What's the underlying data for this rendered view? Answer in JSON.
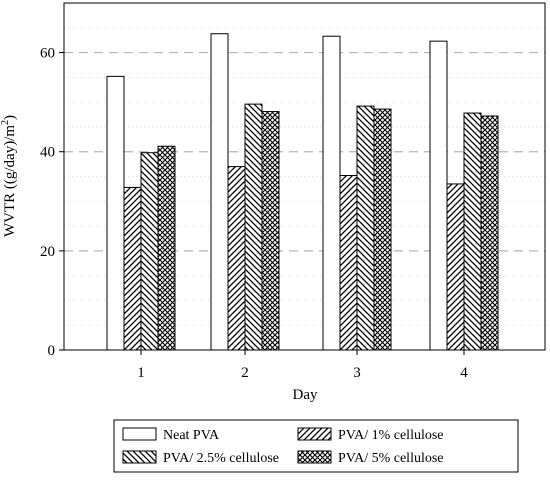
{
  "chart_data": {
    "type": "bar",
    "xlabel": "Day",
    "ylabel": "WVTR ((g/day)/m",
    "ylabel_superscript": "2",
    "ylabel_close": ")",
    "categories": [
      "1",
      "2",
      "3",
      "4"
    ],
    "ylim": [
      0,
      70
    ],
    "yticks": [
      0,
      20,
      40,
      60
    ],
    "grid": {
      "major_dashed": true,
      "minor_dotted": true,
      "major_step": 20,
      "minor_step": 5
    },
    "legend_position": "bottom",
    "series": [
      {
        "name": "Neat PVA",
        "pattern": "none",
        "values": [
          55.2,
          63.8,
          63.3,
          62.3
        ]
      },
      {
        "name": "PVA/ 1% cellulose",
        "pattern": "diagonal-up",
        "values": [
          32.8,
          37.0,
          35.2,
          33.5
        ]
      },
      {
        "name": "PVA/ 2.5% cellulose",
        "pattern": "diagonal-down",
        "values": [
          39.8,
          49.6,
          49.2,
          47.8
        ]
      },
      {
        "name": "PVA/ 5% cellulose",
        "pattern": "crosshatch",
        "values": [
          41.1,
          48.1,
          48.6,
          47.2
        ]
      }
    ]
  }
}
